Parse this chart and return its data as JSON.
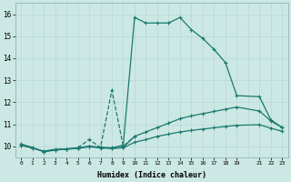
{
  "xlabel": "Humidex (Indice chaleur)",
  "bg_color": "#cce8e4",
  "grid_color": "#c0d8d4",
  "line_color": "#1a7a6e",
  "xlim": [
    -0.5,
    23.5
  ],
  "ylim": [
    9.5,
    16.5
  ],
  "xticks": [
    0,
    1,
    2,
    3,
    4,
    5,
    6,
    7,
    8,
    9,
    10,
    11,
    12,
    13,
    14,
    15,
    16,
    17,
    18,
    19,
    21,
    22,
    23
  ],
  "xtick_labels": [
    "0",
    "1",
    "2",
    "3",
    "4",
    "5",
    "6",
    "7",
    "8",
    "9",
    "10",
    "11",
    "12",
    "13",
    "14",
    "15",
    "16",
    "17",
    "18",
    "19",
    "21",
    "22",
    "23"
  ],
  "yticks": [
    10,
    11,
    12,
    13,
    14,
    15,
    16
  ],
  "series1_x": [
    0,
    1,
    2,
    3,
    4,
    5,
    6,
    7,
    8,
    9,
    10,
    11,
    12,
    13,
    14,
    15,
    16,
    17,
    18,
    19,
    21,
    22,
    23
  ],
  "series1_y": [
    10.1,
    9.95,
    9.75,
    9.82,
    9.88,
    9.93,
    10.0,
    9.95,
    9.93,
    10.05,
    15.85,
    15.6,
    15.6,
    15.6,
    15.85,
    15.3,
    14.9,
    14.4,
    13.8,
    12.3,
    12.25,
    11.2,
    10.85
  ],
  "series2_x": [
    0,
    1,
    2,
    3,
    4,
    5,
    6,
    7,
    8,
    9,
    10,
    11,
    12,
    13,
    14,
    15,
    16,
    17,
    18,
    19,
    21,
    22,
    23
  ],
  "series2_y": [
    10.05,
    9.92,
    9.78,
    9.86,
    9.88,
    9.9,
    10.0,
    9.94,
    9.92,
    9.95,
    10.45,
    10.65,
    10.85,
    11.05,
    11.25,
    11.38,
    11.48,
    11.58,
    11.68,
    11.78,
    11.6,
    11.15,
    10.85
  ],
  "series3_x": [
    0,
    1,
    2,
    3,
    4,
    5,
    6,
    7,
    8,
    9,
    10,
    11,
    12,
    13,
    14,
    15,
    16,
    17,
    18,
    19,
    21,
    22,
    23
  ],
  "series3_y": [
    10.05,
    9.92,
    9.76,
    9.84,
    9.87,
    9.9,
    9.98,
    9.92,
    9.9,
    9.93,
    10.18,
    10.3,
    10.45,
    10.55,
    10.65,
    10.72,
    10.78,
    10.84,
    10.9,
    10.95,
    10.98,
    10.82,
    10.68
  ],
  "series4_x": [
    5,
    6,
    7,
    8,
    9,
    10
  ],
  "series4_y": [
    9.93,
    10.3,
    9.95,
    12.55,
    10.0,
    10.45
  ],
  "lw": 0.9,
  "ms": 3.0
}
